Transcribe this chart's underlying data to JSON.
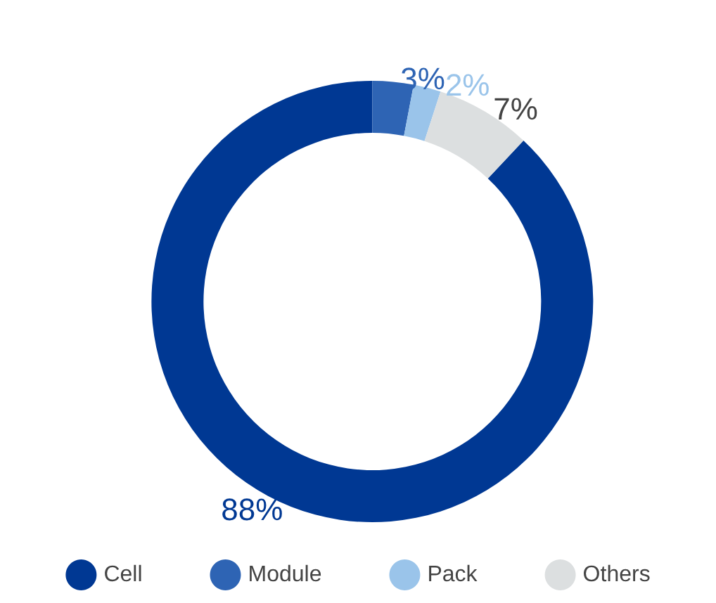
{
  "chart_data": {
    "type": "donut",
    "categories": [
      "Cell",
      "Module",
      "Pack",
      "Others"
    ],
    "values": [
      88,
      3,
      2,
      7
    ],
    "colors": [
      "#003893",
      "#2e64b4",
      "#9ac4ea",
      "#dcdfe0"
    ],
    "value_labels": [
      "88%",
      "3%",
      "2%",
      "7%"
    ],
    "legend": "bottom"
  }
}
